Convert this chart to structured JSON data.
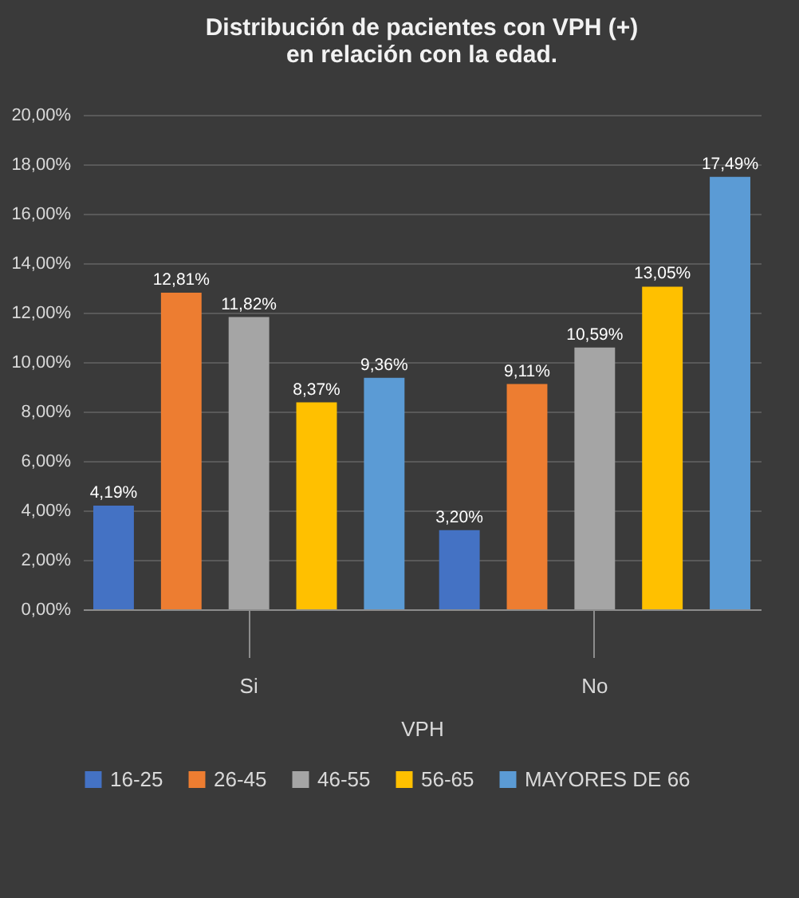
{
  "chart_data": {
    "type": "bar",
    "title": "Distribución de pacientes con VPH (+)\nen relación con la edad.",
    "xlabel": "VPH",
    "categories": [
      "Si",
      "No"
    ],
    "series": [
      {
        "name": "16-25",
        "color": "#4472c4",
        "values": [
          4.19,
          3.2
        ],
        "value_labels": [
          "4,19%",
          "3,20%"
        ]
      },
      {
        "name": "26-45",
        "color": "#ed7d31",
        "values": [
          12.81,
          9.11
        ],
        "value_labels": [
          "12,81%",
          "9,11%"
        ]
      },
      {
        "name": "46-55",
        "color": "#a5a5a5",
        "values": [
          11.82,
          10.59
        ],
        "value_labels": [
          "11,82%",
          "10,59%"
        ]
      },
      {
        "name": "56-65",
        "color": "#ffc000",
        "values": [
          8.37,
          13.05
        ],
        "value_labels": [
          "8,37%",
          "13,05%"
        ]
      },
      {
        "name": "MAYORES DE 66",
        "color": "#5b9bd5",
        "values": [
          9.36,
          17.49
        ],
        "value_labels": [
          "9,36%",
          "17,49%"
        ]
      }
    ],
    "ylim": [
      0,
      20
    ],
    "yticks": [
      {
        "value": 0,
        "label": "0,00%"
      },
      {
        "value": 2,
        "label": "2,00%"
      },
      {
        "value": 4,
        "label": "4,00%"
      },
      {
        "value": 6,
        "label": "6,00%"
      },
      {
        "value": 8,
        "label": "8,00%"
      },
      {
        "value": 10,
        "label": "10,00%"
      },
      {
        "value": 12,
        "label": "12,00%"
      },
      {
        "value": 14,
        "label": "14,00%"
      },
      {
        "value": 16,
        "label": "16,00%"
      },
      {
        "value": 18,
        "label": "18,00%"
      },
      {
        "value": 20,
        "label": "20,00%"
      }
    ],
    "grid": "y",
    "legend": "bottom"
  }
}
